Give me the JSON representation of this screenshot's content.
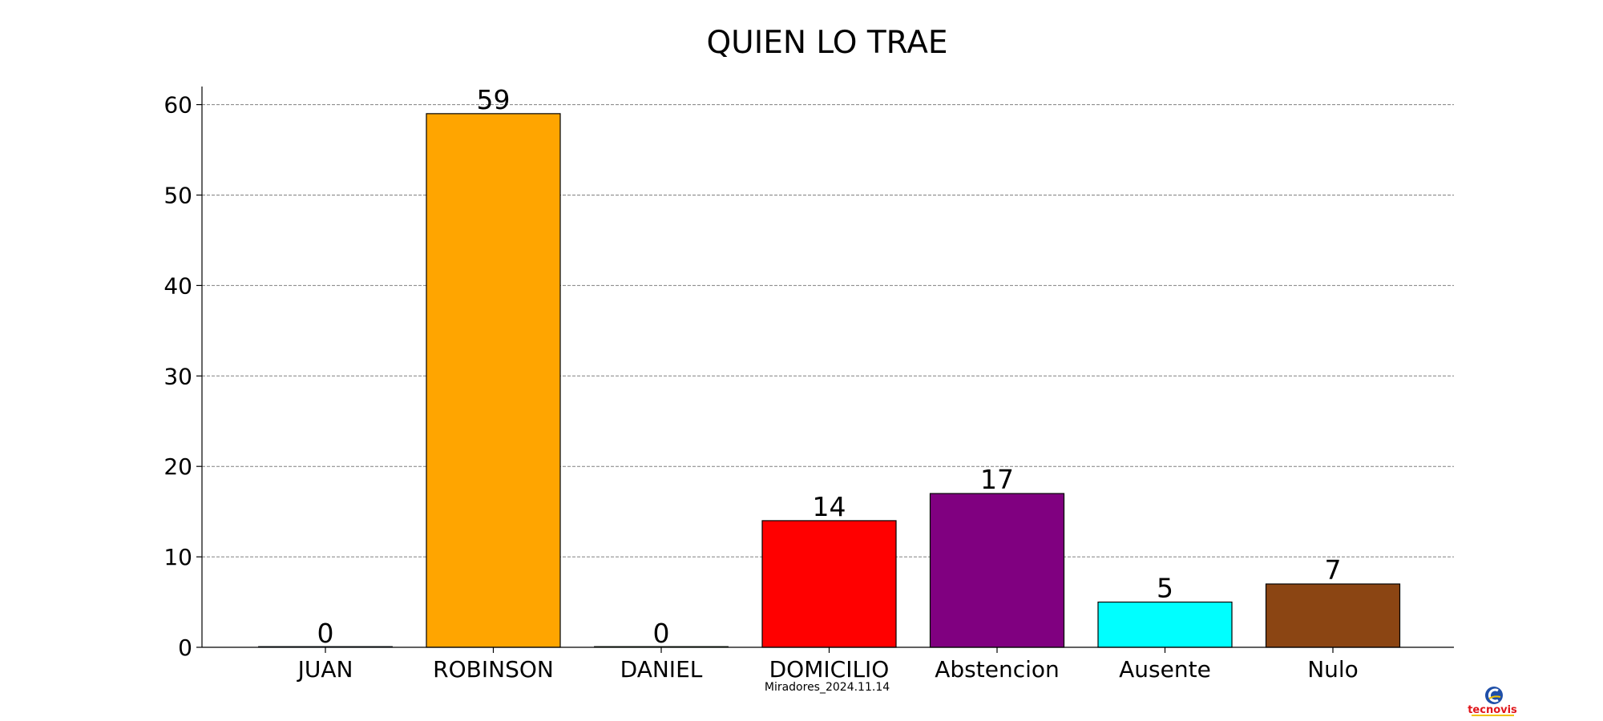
{
  "chart_data": {
    "type": "bar",
    "title": "QUIEN LO TRAE",
    "categories": [
      "JUAN",
      "ROBINSON",
      "DANIEL",
      "DOMICILIO",
      "Abstencion",
      "Ausente",
      "Nulo"
    ],
    "values": [
      0,
      59,
      0,
      14,
      17,
      5,
      7
    ],
    "colors": [
      "#1f77b4",
      "#ffa500",
      "#2ca02c",
      "#ff0000",
      "#800080",
      "#00ffff",
      "#8b4513"
    ],
    "ylim": [
      0,
      62
    ],
    "yticks": [
      0,
      10,
      20,
      30,
      40,
      50,
      60
    ],
    "grid": "y-dashed",
    "legend": "none",
    "xlabel": "",
    "ylabel": ""
  },
  "caption": "Miradores_2024.11.14",
  "logo": {
    "text": "tecnovis",
    "icon": "tecnovis-logo-icon"
  }
}
